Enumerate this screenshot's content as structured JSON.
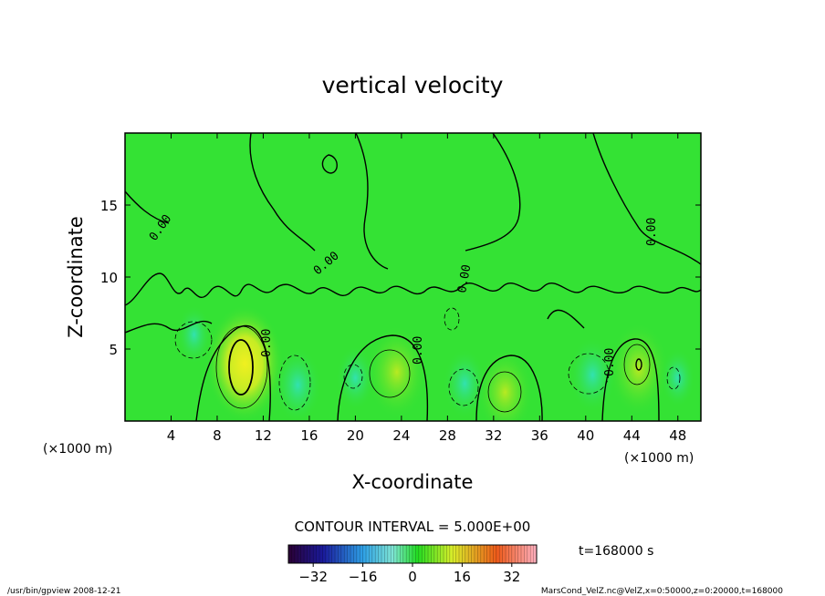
{
  "chart_data": {
    "type": "heatmap",
    "title": "vertical velocity",
    "xlabel": "X-coordinate",
    "ylabel": "Z-coordinate",
    "x_unit_left": "(×1000 m)",
    "x_unit_right": "(×1000 m)",
    "xlim": [
      0,
      50
    ],
    "ylim": [
      0,
      20
    ],
    "x_ticks": [
      4,
      8,
      12,
      16,
      20,
      24,
      28,
      32,
      36,
      40,
      44,
      48
    ],
    "y_ticks": [
      5,
      10,
      15
    ],
    "contour_interval_text": "CONTOUR INTERVAL = 5.000E+00",
    "contour_interval": 5,
    "zero_contour_labels": [
      "0.00",
      "0.00",
      "0.00",
      "0.00",
      "0.00",
      "0.00",
      "0.00"
    ],
    "time_text": "t=168000 s",
    "colorbar": {
      "range": [
        -40,
        40
      ],
      "ticks": [
        -32,
        -16,
        0,
        16,
        32
      ],
      "colors": [
        "#2a0033",
        "#1a1a8c",
        "#2ea0e6",
        "#7fe5e5",
        "#22dd22",
        "#d9ee2a",
        "#ee6a1a",
        "#ffb0c0"
      ]
    },
    "features": [
      {
        "x": 10.4,
        "z": 4.0,
        "w": 12
      },
      {
        "x": 23.6,
        "z": 3.4,
        "w": 8
      },
      {
        "x": 33.0,
        "z": 2.0,
        "w": 7
      },
      {
        "x": 44.6,
        "z": 3.6,
        "w": 8
      },
      {
        "x": 15.0,
        "z": 2.5,
        "w": -5
      },
      {
        "x": 20.0,
        "z": 3.0,
        "w": -3
      },
      {
        "x": 29.5,
        "z": 2.6,
        "w": -4
      },
      {
        "x": 40.6,
        "z": 3.2,
        "w": -5
      },
      {
        "x": 6.0,
        "z": 6.0,
        "w": -2
      },
      {
        "x": 48.0,
        "z": 3.0,
        "w": -2
      }
    ],
    "footer_left": "/usr/bin/gpview  2008-12-21",
    "footer_right": "MarsCond_VelZ.nc@VelZ,x=0:50000,z=0:20000,t=168000"
  }
}
